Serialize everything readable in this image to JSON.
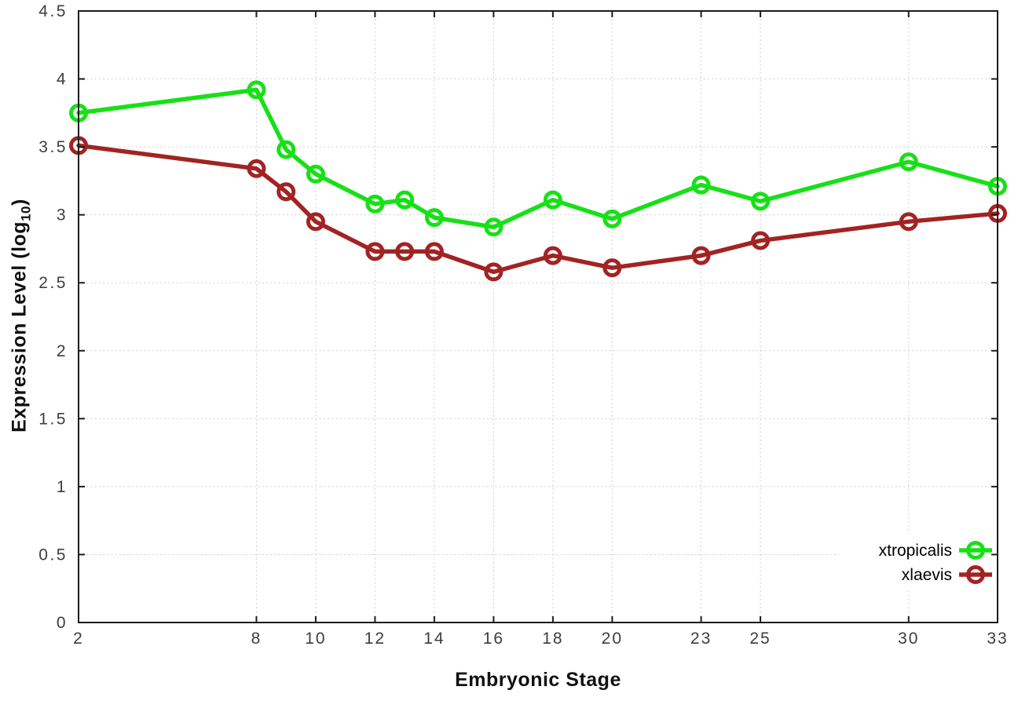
{
  "chart_data": {
    "type": "line",
    "xlabel": "Embryonic Stage",
    "ylabel": "Expression Level (log10)",
    "ylabel_parts": {
      "prefix": "Expression Level (log",
      "sub": "10",
      "suffix": ")"
    },
    "x": [
      2,
      8,
      9,
      10,
      12,
      13,
      14,
      16,
      18,
      20,
      23,
      25,
      30,
      33
    ],
    "series": [
      {
        "name": "xtropicalis",
        "color": "#17e017",
        "values": [
          3.75,
          3.92,
          3.48,
          3.3,
          3.08,
          3.11,
          2.98,
          2.91,
          3.11,
          2.97,
          3.22,
          3.1,
          3.39,
          3.21
        ]
      },
      {
        "name": "xlaevis",
        "color": "#a22323",
        "values": [
          3.51,
          3.34,
          3.17,
          2.95,
          2.73,
          2.73,
          2.73,
          2.58,
          2.7,
          2.61,
          2.7,
          2.81,
          2.95,
          3.01
        ]
      }
    ],
    "xticks": [
      "2",
      "8",
      "10",
      "12",
      "14",
      "16",
      "18",
      "20",
      "23",
      "25",
      "30",
      "33"
    ],
    "yticks": [
      "0",
      "0.5",
      "1",
      "1.5",
      "2",
      "2.5",
      "3",
      "3.5",
      "4",
      "4.5"
    ],
    "xlim": [
      2,
      33
    ],
    "ylim": [
      0,
      4.5
    ],
    "grid": true,
    "legend_position": "bottom-right",
    "marker": "open-circle",
    "background": "#ffffff",
    "axis_color": "#1c1c1c",
    "grid_color": "#c9c9c9",
    "tick_label_color": "#3d3d3d",
    "legend_text_color": "#000000"
  }
}
